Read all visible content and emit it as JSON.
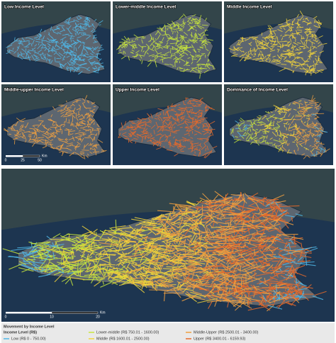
{
  "panels": [
    {
      "title": "Low Income Level",
      "colors": [
        "#4fb8e8"
      ]
    },
    {
      "title": "Lower-middle Income Level",
      "colors": [
        "#c8e63c"
      ]
    },
    {
      "title": "Middle Income Level",
      "colors": [
        "#f2d43a"
      ]
    },
    {
      "title": "Middle-upper Income Level",
      "colors": [
        "#f0a040"
      ]
    },
    {
      "title": "Upper Income Level",
      "colors": [
        "#e86a2a"
      ]
    },
    {
      "title": "Dominance of Income Level",
      "colors": [
        "#4fb8e8",
        "#c8e63c",
        "#f2d43a",
        "#f0a040"
      ]
    }
  ],
  "small_scale": {
    "labels": [
      "0",
      "25",
      "50"
    ],
    "unit": "Km"
  },
  "main_map": {
    "colors": [
      "#4fb8e8",
      "#c8e63c",
      "#f2d43a",
      "#f0a040",
      "#e86a2a"
    ]
  },
  "main_scale": {
    "labels": [
      "0",
      "10",
      "20"
    ],
    "unit": "Km"
  },
  "legend": {
    "title": "Movement by Income Level",
    "subtitle": "Income Level (R$)",
    "items": [
      {
        "label": "Low (R$ 0 - 750.00)",
        "color": "#4fb8e8"
      },
      {
        "label": "Lower-middle (R$ 750.01 - 1600.00)",
        "color": "#c8e63c"
      },
      {
        "label": "Middle (R$ 1600.01 - 2500.00)",
        "color": "#f2d43a"
      },
      {
        "label": "Middle-Upper (R$ 2500.01 - 3400.00)",
        "color": "#f0a040"
      },
      {
        "label": "Upper (R$ 3400.01 - 6159.93)",
        "color": "#e86a2a"
      }
    ]
  }
}
